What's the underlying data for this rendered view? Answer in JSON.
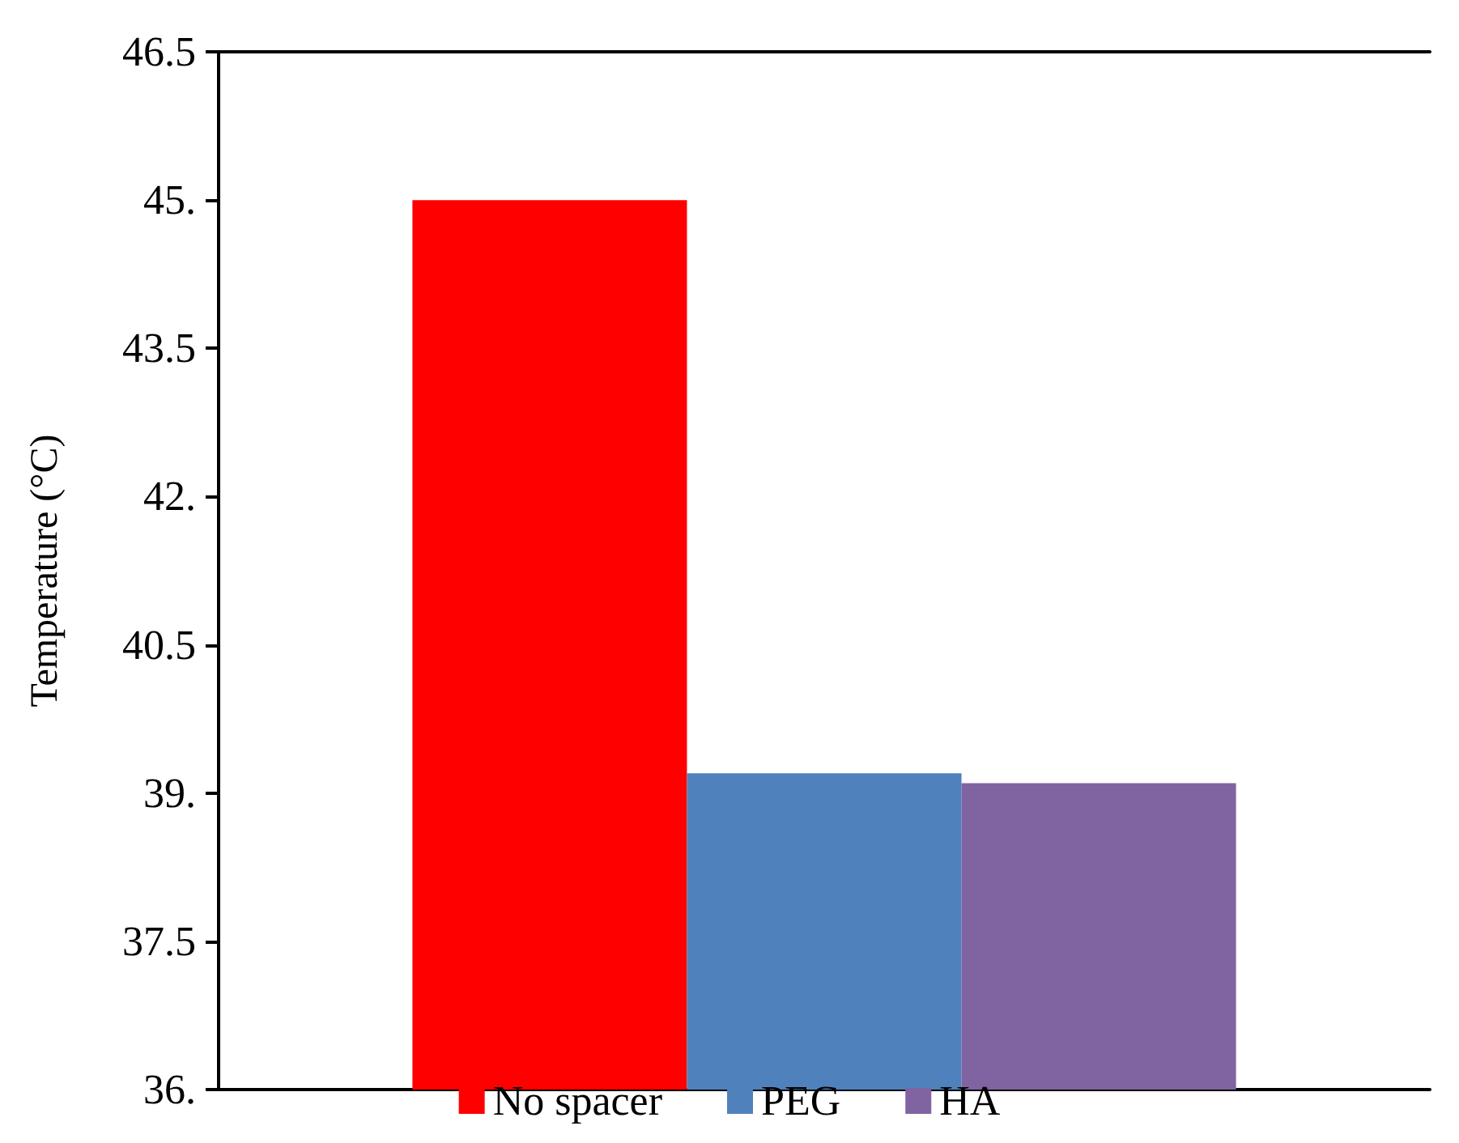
{
  "chart_data": {
    "type": "bar",
    "ylabel": "Temperature (°C)",
    "categories": [
      null
    ],
    "series": [
      {
        "name": "No spacer",
        "color": "#ff0000",
        "values": [
          45.0
        ]
      },
      {
        "name": "PEG",
        "color": "#4f81bd",
        "values": [
          39.2
        ]
      },
      {
        "name": "HA",
        "color": "#8064a2",
        "values": [
          39.1
        ]
      }
    ],
    "ylim": [
      36,
      46.5
    ],
    "yticks": [
      {
        "value": 36,
        "label": "36."
      },
      {
        "value": 37.5,
        "label": "37.5"
      },
      {
        "value": 39,
        "label": "39."
      },
      {
        "value": 40.5,
        "label": "40.5"
      },
      {
        "value": 42,
        "label": "42."
      },
      {
        "value": 43.5,
        "label": "43.5"
      },
      {
        "value": 45,
        "label": "45."
      },
      {
        "value": 46.5,
        "label": "46.5"
      }
    ],
    "grid": false,
    "legend": "bottom"
  }
}
